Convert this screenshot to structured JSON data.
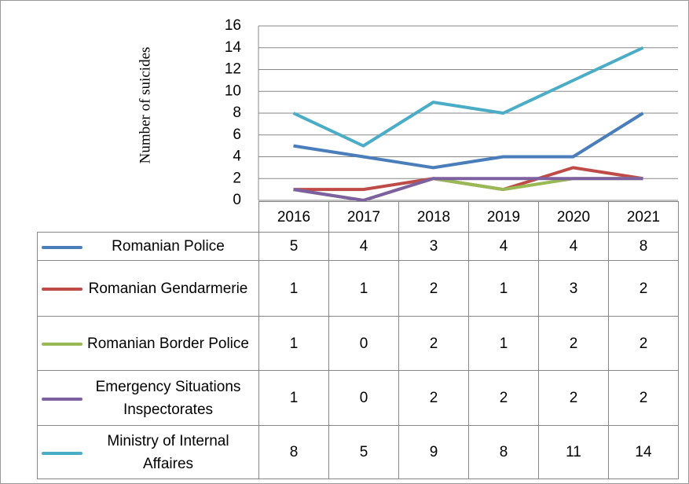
{
  "chart_data": {
    "type": "line",
    "y_label": "Number of suicides",
    "categories": [
      "2016",
      "2017",
      "2018",
      "2019",
      "2020",
      "2021"
    ],
    "ylim": [
      0,
      16
    ],
    "yticks": [
      0,
      2,
      4,
      6,
      8,
      10,
      12,
      14,
      16
    ],
    "grid": true,
    "series": [
      {
        "name": "Romanian Police",
        "color": "#4a7ebb",
        "values": [
          5,
          4,
          3,
          4,
          4,
          8
        ]
      },
      {
        "name": "Romanian Gendarmerie",
        "color": "#be4b48",
        "values": [
          1,
          1,
          2,
          1,
          3,
          2
        ]
      },
      {
        "name": "Romanian Border Police",
        "color": "#98b954",
        "values": [
          1,
          0,
          2,
          1,
          2,
          2
        ]
      },
      {
        "name": "Emergency Situations Inspectorates",
        "color": "#7d60a0",
        "values": [
          1,
          0,
          2,
          2,
          2,
          2
        ]
      },
      {
        "name": "Ministry of Internal Affaires",
        "color": "#4bacc6",
        "values": [
          8,
          5,
          9,
          8,
          11,
          14
        ]
      }
    ]
  }
}
